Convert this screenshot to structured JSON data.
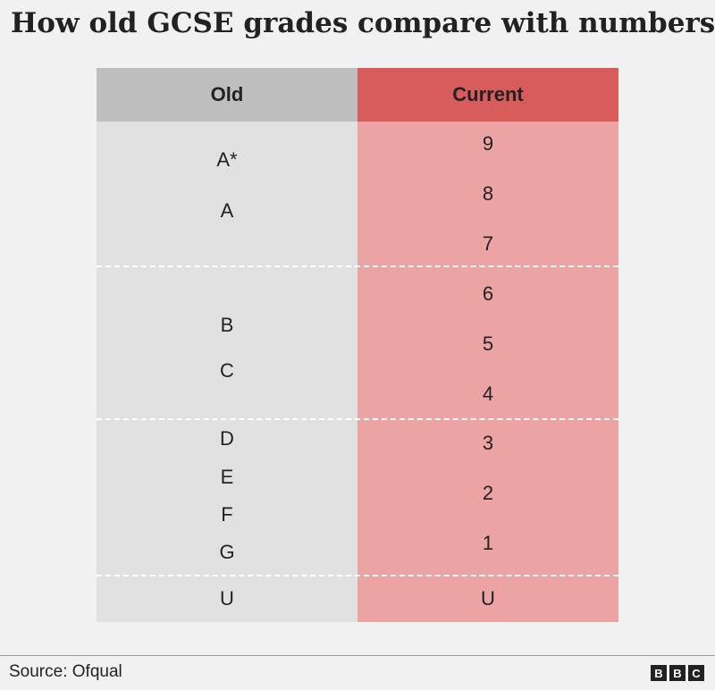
{
  "title": "How old GCSE grades compare with numbers",
  "source": "Source: Ofqual",
  "logo": [
    "B",
    "B",
    "C"
  ],
  "chart_data": {
    "type": "table",
    "columns": [
      "Old",
      "Current"
    ],
    "old": [
      {
        "label": "A*"
      },
      {
        "label": "A"
      },
      {
        "label": "B"
      },
      {
        "label": "C"
      },
      {
        "label": "D"
      },
      {
        "label": "E"
      },
      {
        "label": "F"
      },
      {
        "label": "G"
      },
      {
        "label": "U"
      }
    ],
    "current": [
      {
        "label": "9"
      },
      {
        "label": "8"
      },
      {
        "label": "7"
      },
      {
        "label": "6"
      },
      {
        "label": "5"
      },
      {
        "label": "4"
      },
      {
        "label": "3"
      },
      {
        "label": "2"
      },
      {
        "label": "1"
      },
      {
        "label": "U"
      }
    ],
    "colors": {
      "old_header": "#bebebe",
      "old_body": "#e1e1e1",
      "current_header": "#d75c5b",
      "current_body": "#eba3a3"
    }
  }
}
